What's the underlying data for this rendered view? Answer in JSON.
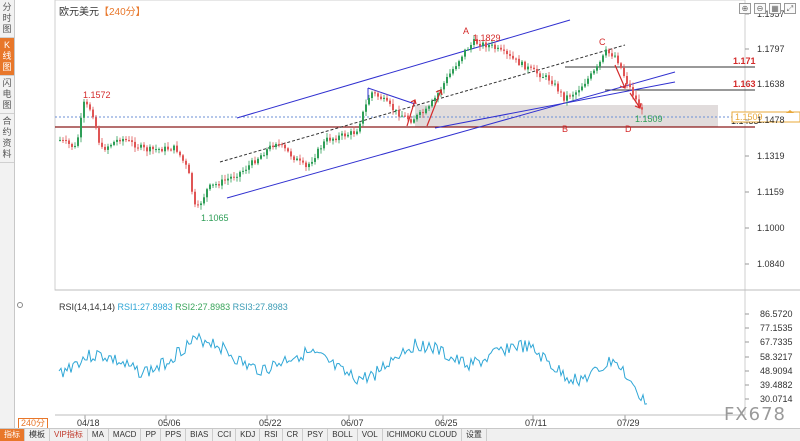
{
  "sidebar": {
    "tabs": [
      {
        "label": "分时图",
        "active": false
      },
      {
        "label": "K线图",
        "active": true
      },
      {
        "label": "闪电图",
        "active": false
      },
      {
        "label": "合约资料",
        "active": false
      }
    ]
  },
  "header": {
    "symbol": "欧元美元",
    "period": "【240分】"
  },
  "top_icons": [
    "⊕",
    "⊖",
    "▦",
    "⤢"
  ],
  "price_axis": {
    "ticks": [
      "1.1957",
      "1.1797",
      "1.1638",
      "1.1478",
      "1.1319",
      "1.1159",
      "1.1000",
      "1.0840"
    ]
  },
  "date_axis": {
    "ticks": [
      "04/18",
      "05/06",
      "05/22",
      "06/07",
      "06/25",
      "07/11",
      "07/29"
    ]
  },
  "annotations": {
    "point_a": "A",
    "point_b": "B",
    "point_c": "C",
    "point_d": "D",
    "high_1": "1.1572",
    "high_a": "1.1829",
    "low_1": "1.1065",
    "low_d": "1.1509",
    "level_1": "1.171",
    "level_2": "1.163",
    "level_3": "1.1455",
    "current_price": "1.1509"
  },
  "rsi": {
    "title": "RSI(14,14,14)",
    "rsi1": "RSI1:27.8983",
    "rsi2": "RSI2:27.8983",
    "rsi3": "RSI3:27.8983",
    "ticks": [
      "86.5720",
      "77.1535",
      "67.7335",
      "58.3217",
      "48.9094",
      "39.4882",
      "30.0714"
    ]
  },
  "period_label": "240分",
  "bottom_tabs": [
    "指标",
    "模板",
    "VIP指标",
    "MA",
    "MACD",
    "PP",
    "PPS",
    "BIAS",
    "CCI",
    "KDJ",
    "RSI",
    "CR",
    "PSY",
    "BOLL",
    "VOL",
    "ICHIMOKU CLOUD",
    "设置"
  ],
  "watermark": "FX678",
  "colors": {
    "accent": "#e8772a",
    "bull_candle": "#2e9e57",
    "bear_candle": "#e05555",
    "channel": "#3030d0",
    "annotation_red": "#d42a2a",
    "rsi_line": "#2ea6d6"
  }
}
